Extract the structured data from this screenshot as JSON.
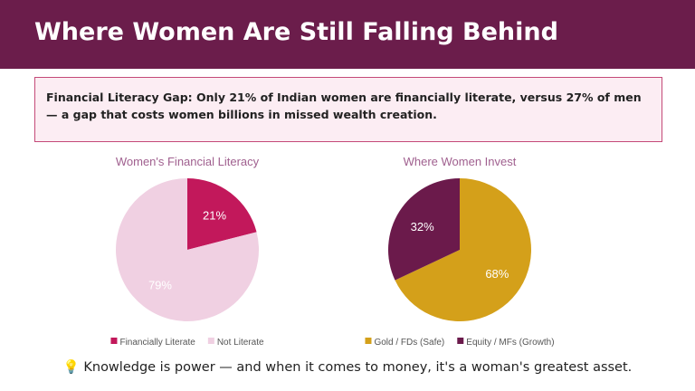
{
  "header": {
    "title": "Where Women Are Still Falling Behind"
  },
  "callout": {
    "text": "Financial Literacy Gap: Only 21% of Indian women are financially literate, versus 27% of men — a gap that costs women billions in missed wealth creation."
  },
  "chart_data": [
    {
      "type": "pie",
      "title": "Women's Financial Literacy",
      "categories": [
        "Financially Literate",
        "Not Literate"
      ],
      "values": [
        21,
        79
      ],
      "value_labels": [
        "21%",
        "79%"
      ],
      "colors": [
        "#c2185b",
        "#f0d0e2"
      ],
      "legend": "bottom"
    },
    {
      "type": "pie",
      "title": "Where Women Invest",
      "categories": [
        "Gold / FDs (Safe)",
        "Equity / MFs (Growth)"
      ],
      "values": [
        68,
        32
      ],
      "value_labels": [
        "68%",
        "32%"
      ],
      "colors": [
        "#d4a01a",
        "#6b1a4b"
      ],
      "legend": "bottom"
    }
  ],
  "footer": {
    "text": "💡 Knowledge is power — and when it comes to money, it's a woman's greatest asset."
  }
}
